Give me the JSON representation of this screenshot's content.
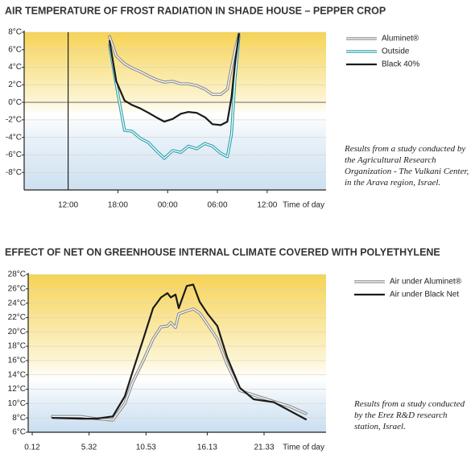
{
  "chart_data": [
    {
      "type": "line",
      "title": "AIR TEMPERATURE OF FROST RADIATION IN SHADE HOUSE – PEPPER CROP",
      "xlabel": "Time of day",
      "annotation": "Results from a study conducted by the Agricultural Research Organization - The Vulkani Center, in the Arava region, Israel.",
      "x": [
        17.0,
        17.8,
        18.8,
        19.7,
        20.7,
        21.7,
        22.6,
        23.6,
        24.6,
        25.6,
        26.5,
        27.5,
        28.5,
        29.4,
        30.4,
        31.2,
        31.7,
        32.1,
        32.6
      ],
      "xlim": [
        6.7,
        43.1
      ],
      "xticks": [
        {
          "value": 12,
          "label": "12:00"
        },
        {
          "value": 18,
          "label": "18:00"
        },
        {
          "value": 24,
          "label": "00:00"
        },
        {
          "value": 30,
          "label": "06:00"
        },
        {
          "value": 36,
          "label": "12:00"
        }
      ],
      "ylim": [
        -10,
        8
      ],
      "yticks": [
        {
          "value": 8,
          "label": "8°C"
        },
        {
          "value": 6,
          "label": "6°C"
        },
        {
          "value": 4,
          "label": "4°C"
        },
        {
          "value": 2,
          "label": "2°C"
        },
        {
          "value": 0,
          "label": "0°C"
        },
        {
          "value": -2,
          "label": "-2°C"
        },
        {
          "value": -4,
          "label": "-4°C"
        },
        {
          "value": -6,
          "label": "-6°C"
        },
        {
          "value": -8,
          "label": "-8°C"
        }
      ],
      "grid": true,
      "legend": "upper right",
      "series": [
        {
          "name": "Aluminet®",
          "color": "#8c8c8c",
          "double": true,
          "values": [
            7.5,
            5.3,
            4.4,
            3.9,
            3.5,
            3.0,
            2.6,
            2.3,
            2.4,
            2.1,
            2.1,
            1.9,
            1.5,
            0.9,
            0.9,
            1.5,
            4.0,
            5.8,
            7.8
          ]
        },
        {
          "name": "Outside",
          "color": "#2ea3ad",
          "double": true,
          "values": [
            6.5,
            2.0,
            -3.2,
            -3.3,
            -4.1,
            -4.6,
            -5.5,
            -6.4,
            -5.5,
            -5.7,
            -5.0,
            -5.3,
            -4.7,
            -5.0,
            -5.8,
            -6.2,
            -3.6,
            2.4,
            7.5
          ]
        },
        {
          "name": "Black 40%",
          "color": "#1a1a1a",
          "double": false,
          "values": [
            7.0,
            2.4,
            0.2,
            -0.3,
            -0.7,
            -1.2,
            -1.7,
            -2.2,
            -1.9,
            -1.3,
            -1.1,
            -1.2,
            -1.7,
            -2.5,
            -2.6,
            -2.2,
            0.6,
            4.3,
            7.8
          ]
        }
      ]
    },
    {
      "type": "line",
      "title": "EFFECT OF NET ON GREENHOUSE INTERNAL CLIMATE COVERED WITH POLYETHYLENE",
      "xlabel": "Time of day",
      "annotation": "Results from a study conducted by the Erez R&D research station, Israel.",
      "x": [
        1.96,
        4.54,
        6.01,
        7.48,
        8.59,
        9.32,
        10.28,
        11.17,
        11.9,
        12.49,
        12.79,
        13.23,
        13.52,
        14.26,
        14.85,
        15.44,
        16.17,
        17.06,
        17.94,
        19.12,
        20.37,
        22.21,
        23.68,
        25.15
      ],
      "xlim": [
        -0.25,
        27.0
      ],
      "xticks": [
        0.12,
        5.32,
        10.53,
        16.13,
        21.33
      ],
      "ylim": [
        6,
        28
      ],
      "yticks": [
        {
          "value": 28,
          "label": "28°C"
        },
        {
          "value": 26,
          "label": "26°C"
        },
        {
          "value": 24,
          "label": "24°C"
        },
        {
          "value": 22,
          "label": "22°C"
        },
        {
          "value": 20,
          "label": "20°C"
        },
        {
          "value": 18,
          "label": "18°C"
        },
        {
          "value": 16,
          "label": "16°C"
        },
        {
          "value": 14,
          "label": "14°C"
        },
        {
          "value": 12,
          "label": "12°C"
        },
        {
          "value": 10,
          "label": "10°C"
        },
        {
          "value": 8,
          "label": "8°C"
        },
        {
          "value": 6,
          "label": "6°C"
        }
      ],
      "grid": true,
      "legend": "upper right",
      "series": [
        {
          "name": "Air under Aluminet®",
          "color": "#8c8c8c",
          "double": true,
          "values": [
            8.2,
            8.2,
            7.9,
            7.7,
            10.0,
            13.0,
            16.0,
            19.0,
            20.7,
            20.8,
            21.3,
            20.6,
            22.5,
            22.9,
            23.2,
            22.6,
            21.0,
            19.0,
            15.5,
            11.8,
            11.2,
            10.3,
            9.6,
            8.6
          ]
        },
        {
          "name": "Air under Black Net",
          "color": "#1a1a1a",
          "double": false,
          "values": [
            8.0,
            7.9,
            7.9,
            8.2,
            11.0,
            14.5,
            19.0,
            23.3,
            24.8,
            25.4,
            24.8,
            25.2,
            23.3,
            26.4,
            26.6,
            24.2,
            22.5,
            20.8,
            16.5,
            12.2,
            10.6,
            10.2,
            9.0,
            7.8
          ]
        }
      ]
    }
  ]
}
